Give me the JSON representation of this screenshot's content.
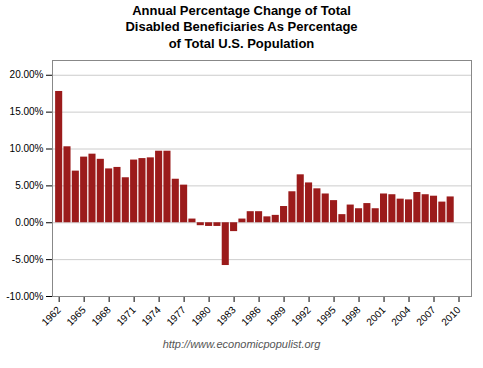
{
  "chart_data": {
    "type": "bar",
    "title": "Annual Percentage Change of Total\nDisabled Beneficiaries As Percentage\nof Total U.S. Population",
    "footer": "http://www.economicpopulist.org",
    "x": [
      1962,
      1963,
      1964,
      1965,
      1966,
      1967,
      1968,
      1969,
      1970,
      1971,
      1972,
      1973,
      1974,
      1975,
      1976,
      1977,
      1978,
      1979,
      1980,
      1981,
      1982,
      1983,
      1984,
      1985,
      1986,
      1987,
      1988,
      1989,
      1990,
      1991,
      1992,
      1993,
      1994,
      1995,
      1996,
      1997,
      1998,
      1999,
      2000,
      2001,
      2002,
      2003,
      2004,
      2005,
      2006,
      2007,
      2008,
      2009
    ],
    "values": [
      17.8,
      10.3,
      7.0,
      8.9,
      9.3,
      8.6,
      7.3,
      7.5,
      6.1,
      8.5,
      8.7,
      8.8,
      9.7,
      9.7,
      5.9,
      5.1,
      0.5,
      -0.4,
      -0.5,
      -0.5,
      -5.8,
      -1.2,
      0.5,
      1.5,
      1.5,
      0.8,
      1.0,
      2.2,
      4.2,
      6.5,
      5.4,
      4.6,
      3.9,
      3.0,
      1.1,
      2.4,
      1.9,
      2.6,
      1.9,
      3.9,
      3.8,
      3.2,
      3.1,
      4.1,
      3.8,
      3.6,
      2.8,
      3.5
    ],
    "color": "#9B1B1B",
    "xlim": [
      1961.2,
      2011.5
    ],
    "xticks": [
      1962,
      1965,
      1968,
      1971,
      1974,
      1977,
      1980,
      1983,
      1986,
      1989,
      1992,
      1995,
      1998,
      2001,
      2004,
      2007,
      2010
    ],
    "ylim": [
      -10.0,
      22.0
    ],
    "yticks": [
      {
        "value": -10.0,
        "label": "-10.00%"
      },
      {
        "value": -5.0,
        "label": "-5.00%"
      },
      {
        "value": 0.0,
        "label": "0.00%"
      },
      {
        "value": 5.0,
        "label": "5.00%"
      },
      {
        "value": 10.0,
        "label": "10.00%"
      },
      {
        "value": 15.0,
        "label": "15.00%"
      },
      {
        "value": 20.0,
        "label": "20.00%"
      }
    ],
    "grid": true
  }
}
